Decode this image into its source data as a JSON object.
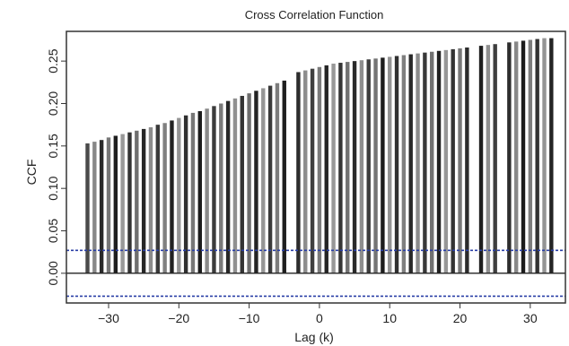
{
  "chart_data": {
    "type": "bar",
    "title": "Cross Correlation Function",
    "xlabel": "Lag (k)",
    "ylabel": "CCF",
    "x": [
      -33,
      -32,
      -31,
      -30,
      -29,
      -28,
      -27,
      -26,
      -25,
      -24,
      -23,
      -22,
      -21,
      -20,
      -19,
      -18,
      -17,
      -16,
      -15,
      -14,
      -13,
      -12,
      -11,
      -10,
      -9,
      -8,
      -7,
      -6,
      -5,
      -4,
      -3,
      -2,
      -1,
      0,
      1,
      2,
      3,
      4,
      5,
      6,
      7,
      8,
      9,
      10,
      11,
      12,
      13,
      14,
      15,
      16,
      17,
      18,
      19,
      20,
      21,
      22,
      23,
      24,
      25,
      26,
      27,
      28,
      29,
      30,
      31,
      32,
      33
    ],
    "values": [
      0.153,
      0.155,
      0.157,
      0.16,
      0.162,
      0.164,
      0.166,
      0.168,
      0.17,
      0.172,
      0.175,
      0.177,
      0.18,
      0.183,
      0.186,
      0.189,
      0.191,
      0.194,
      0.197,
      0.2,
      0.203,
      0.206,
      0.209,
      0.212,
      0.215,
      0.218,
      0.221,
      0.224,
      0.227,
      0.23,
      0.237,
      0.239,
      0.241,
      0.243,
      0.245,
      0.247,
      0.248,
      0.249,
      0.25,
      0.251,
      0.252,
      0.253,
      0.254,
      0.255,
      0.256,
      0.257,
      0.258,
      0.259,
      0.26,
      0.261,
      0.262,
      0.263,
      0.264,
      0.265,
      0.266,
      0.267,
      0.268,
      0.269,
      0.27,
      0.271,
      0.272,
      0.273,
      0.274,
      0.275,
      0.276,
      0.277,
      0.277
    ],
    "bar_colors": [
      "#4a4a4a",
      "#888888",
      "#2a2a2a",
      "#777777",
      "#1e1e1e",
      "#999999",
      "#333333",
      "#6f6f6f",
      "#262626",
      "#8c8c8c",
      "#3a3a3a",
      "#808080",
      "#222222",
      "#959595",
      "#2f2f2f",
      "#777777",
      "#1c1c1c",
      "#8a8a8a",
      "#3c3c3c",
      "#7a7a7a",
      "#272727",
      "#909090",
      "#343434",
      "#6e6e6e",
      "#232323",
      "#969696",
      "#3b3b3b",
      "#7c7c7c",
      "#1f1f1f",
      "#ffffff",
      "#2c2c2c",
      "#8d8d8d",
      "#404040",
      "#7b7b7b",
      "#252525",
      "#989898",
      "#363636",
      "#727272",
      "#2a2a2a",
      "#8e8e8e",
      "#3d3d3d",
      "#747474",
      "#1d1d1d",
      "#939393",
      "#303030",
      "#7f7f7f",
      "#282828",
      "#8b8b8b",
      "#383838",
      "#717171",
      "#212121",
      "#979797",
      "#333333",
      "#777777",
      "#2b2b2b",
      "#ffffff",
      "#1e1e1e",
      "#8f8f8f",
      "#3e3e3e",
      "#ffffff",
      "#2d2d2d",
      "#888888",
      "#1b1b1b",
      "#7d7d7d",
      "#323232",
      "#949494",
      "#252525"
    ],
    "confidence_bound": 0.027,
    "xlim": [
      -36,
      35
    ],
    "ylim": [
      -0.035,
      0.285
    ],
    "xticks": [
      -30,
      -20,
      -10,
      0,
      10,
      20,
      30
    ],
    "xtick_labels": [
      "−30",
      "−20",
      "−10",
      "0",
      "10",
      "20",
      "30"
    ],
    "yticks": [
      0.0,
      0.05,
      0.1,
      0.15,
      0.2,
      0.25
    ],
    "ytick_labels": [
      "0.00",
      "0.05",
      "0.10",
      "0.15",
      "0.20",
      "0.25"
    ],
    "colors": {
      "bound_line": "#2a3fa6",
      "frame": "#333333",
      "zero_line": "#222222"
    },
    "grid": false
  }
}
